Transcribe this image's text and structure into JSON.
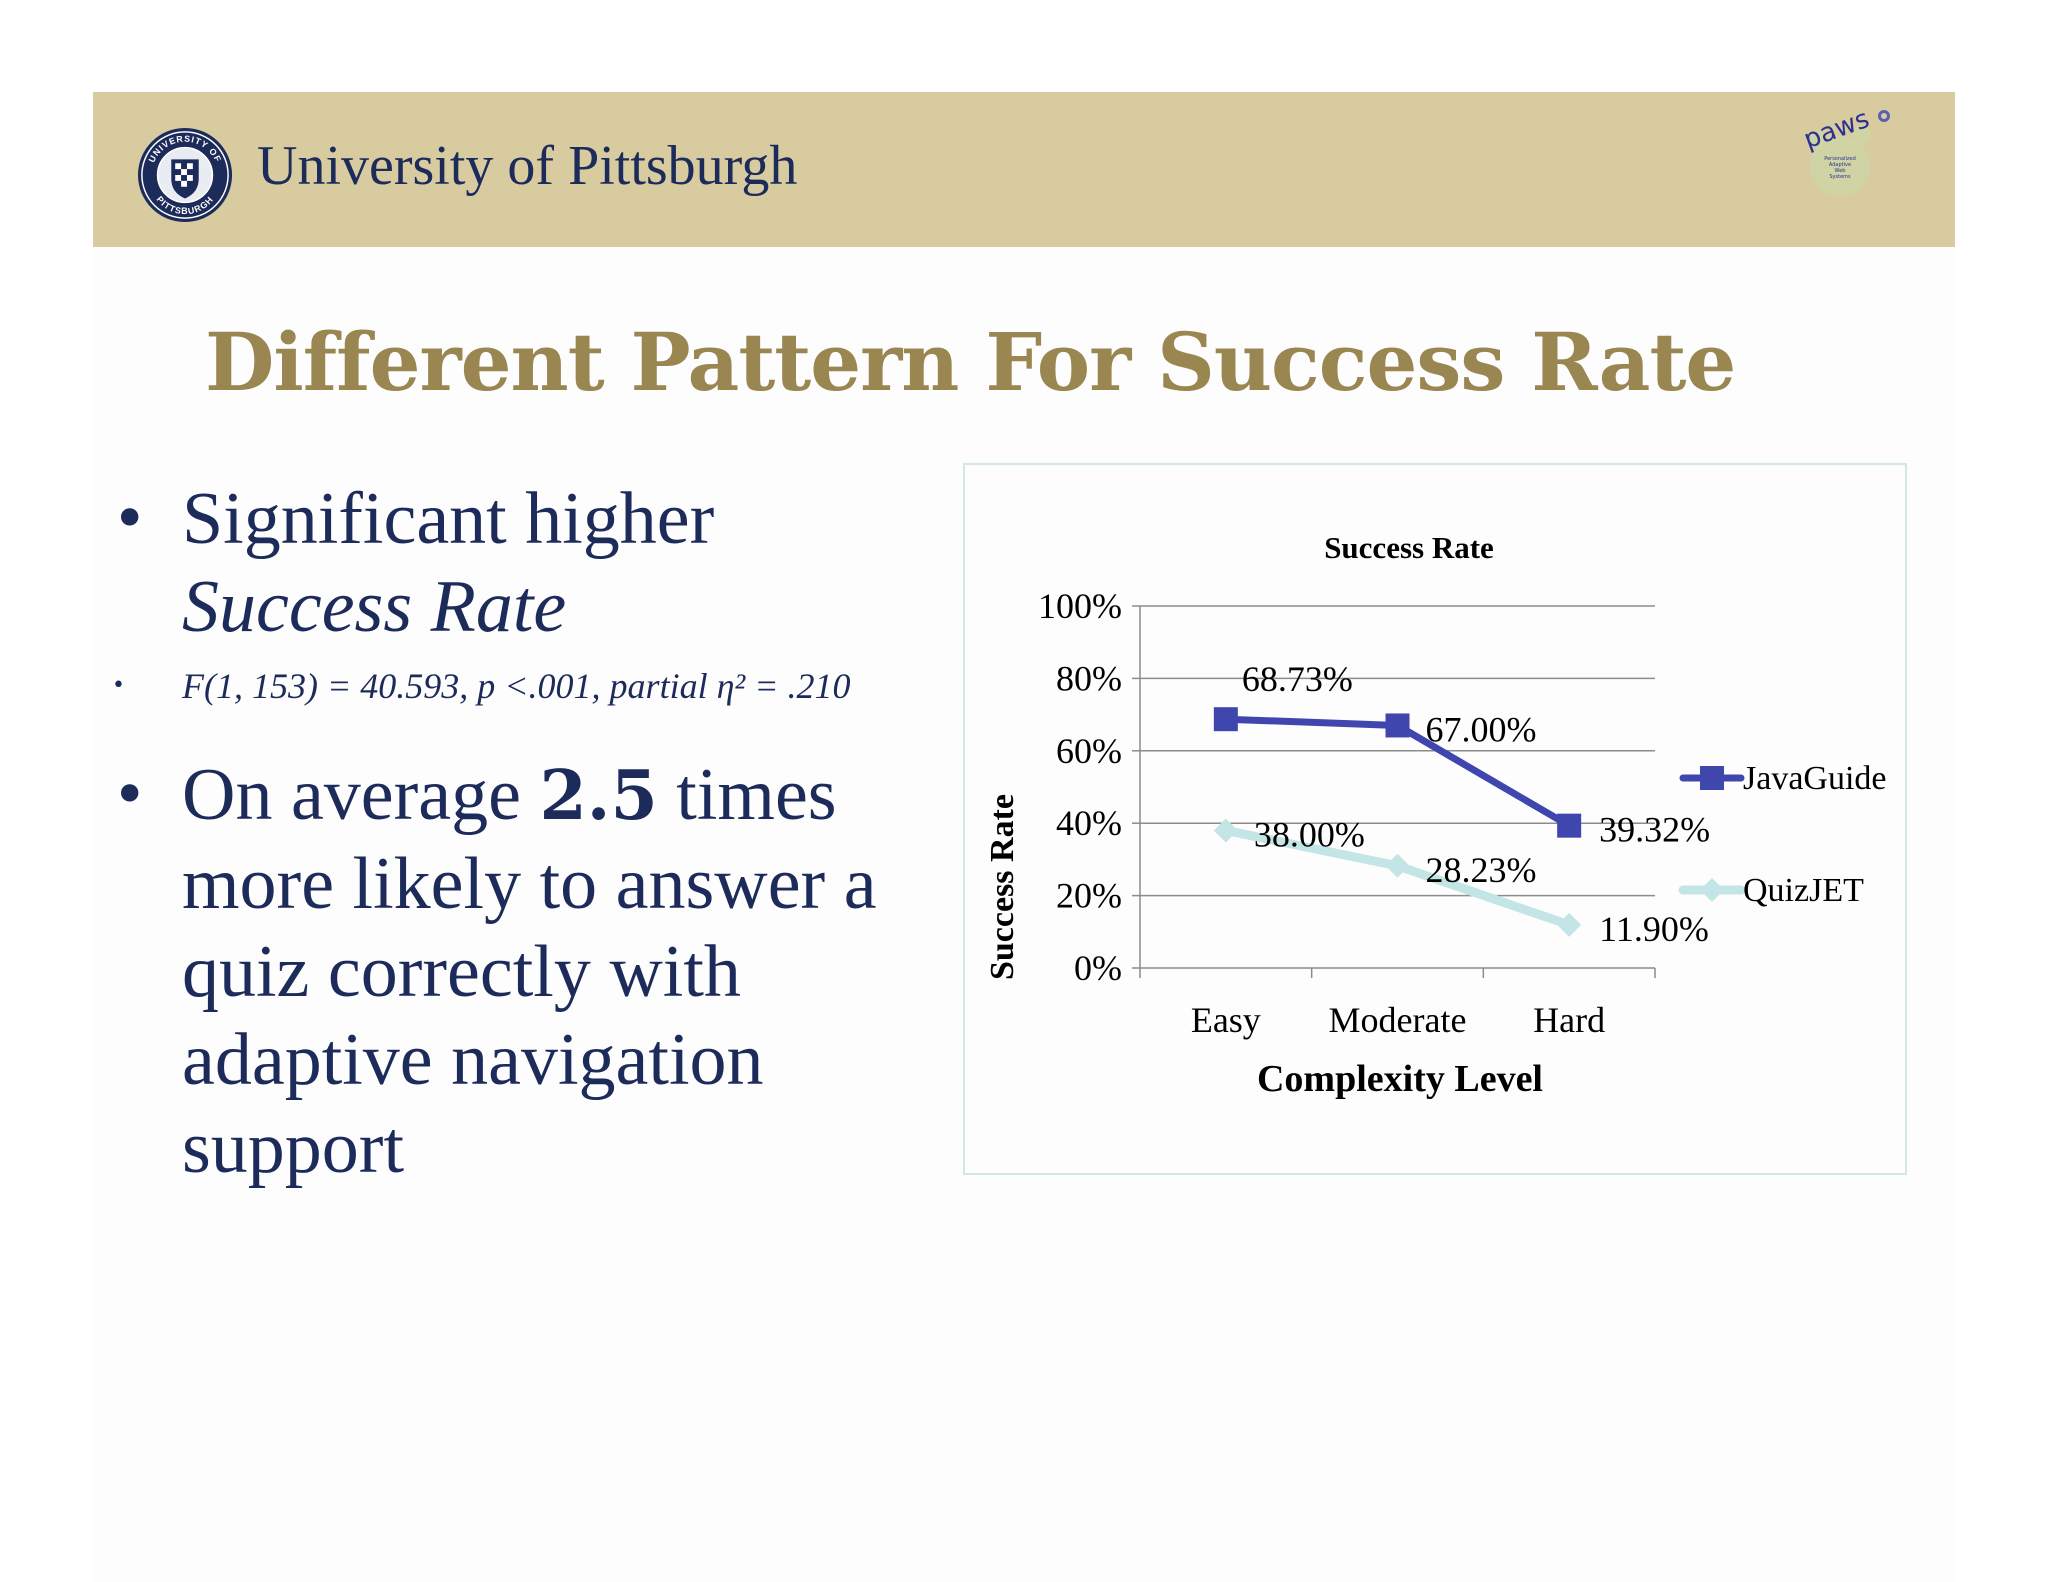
{
  "header": {
    "university_name": "University of Pittsburgh",
    "seal_text": [
      "UNIVERSITY OF",
      "PITTSBURGH"
    ],
    "logo_text": [
      "paws",
      "Personalized",
      "Adaptive",
      "Web",
      "Systems"
    ]
  },
  "slide": {
    "title": "Different Pattern For Success Rate",
    "bullets": [
      {
        "prefix": "Significant higher",
        "emphasis": "Success Rate"
      },
      {
        "stat": "F(1, 153) = 40.593, p <.001, partial η² = .210"
      },
      {
        "before": "On average ",
        "bold": "2.5",
        "after": " times more likely to answer a quiz correctly with adaptive navigation support"
      }
    ]
  },
  "colors": {
    "header_band": "#d8cba0",
    "title": "#9a8651",
    "body_text": "#1c2b5a",
    "javaguide": "#3f46ae",
    "quizjet": "#c3e5e5"
  },
  "chart_data": {
    "type": "line",
    "title": "Success Rate",
    "xlabel": "Complexity Level",
    "ylabel": "Success Rate",
    "categories": [
      "Easy",
      "Moderate",
      "Hard"
    ],
    "ylim": [
      0,
      100
    ],
    "yticks": [
      0,
      20,
      40,
      60,
      80,
      100
    ],
    "ytick_labels": [
      "0%",
      "20%",
      "40%",
      "60%",
      "80%",
      "100%"
    ],
    "grid": true,
    "legend_position": "right",
    "series": [
      {
        "name": "JavaGuide",
        "values": [
          68.73,
          67.0,
          39.32
        ],
        "labels": [
          "68.73%",
          "67.00%",
          "39.32%"
        ],
        "marker": "square",
        "color": "#3f46ae"
      },
      {
        "name": "QuizJET",
        "values": [
          38.0,
          28.23,
          11.9
        ],
        "labels": [
          "38.00%",
          "28.23%",
          "11.90%"
        ],
        "marker": "diamond",
        "color": "#c3e5e5"
      }
    ]
  }
}
